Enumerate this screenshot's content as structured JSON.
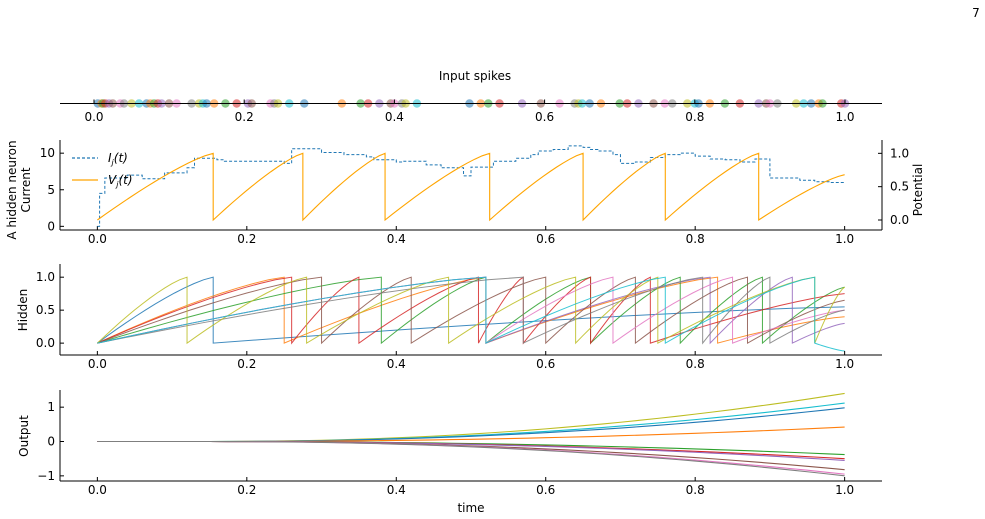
{
  "page_number": "7",
  "colors": {
    "current": "#1f77b4",
    "potential": "#ffa500",
    "axis": "#000000",
    "palette": [
      "#1f77b4",
      "#ff7f0e",
      "#2ca02c",
      "#d62728",
      "#9467bd",
      "#8c564b",
      "#e377c2",
      "#7f7f7f",
      "#bcbd22",
      "#17becf"
    ]
  },
  "chart_data": [
    {
      "type": "scatter",
      "title": "Input spikes",
      "xlim": [
        0.0,
        1.0
      ],
      "xticks": [
        "0.0",
        "0.2",
        "0.4",
        "0.6",
        "0.8",
        "1.0"
      ],
      "spike_times": [
        0.005,
        0.01,
        0.012,
        0.015,
        0.02,
        0.025,
        0.035,
        0.04,
        0.05,
        0.06,
        0.07,
        0.075,
        0.08,
        0.085,
        0.09,
        0.1,
        0.11,
        0.13,
        0.14,
        0.145,
        0.15,
        0.16,
        0.175,
        0.19,
        0.205,
        0.21,
        0.235,
        0.24,
        0.245,
        0.26,
        0.28,
        0.33,
        0.355,
        0.365,
        0.38,
        0.395,
        0.4,
        0.41,
        0.415,
        0.43,
        0.5,
        0.515,
        0.525,
        0.54,
        0.57,
        0.595,
        0.62,
        0.64,
        0.645,
        0.65,
        0.66,
        0.675,
        0.7,
        0.71,
        0.725,
        0.745,
        0.76,
        0.77,
        0.79,
        0.8,
        0.805,
        0.82,
        0.84,
        0.86,
        0.885,
        0.895,
        0.9,
        0.91,
        0.935,
        0.945,
        0.955,
        0.965,
        0.97,
        0.995,
        1.0
      ]
    },
    {
      "type": "line",
      "ylabel": "A hidden neuron",
      "ylabel_left": "Current",
      "ylabel_right": "Potential",
      "xlim": [
        -0.05,
        1.05
      ],
      "ylim_left": [
        -0.5,
        11.8
      ],
      "ylim_right": [
        -0.15,
        1.2
      ],
      "xticks": [
        "0.0",
        "0.2",
        "0.4",
        "0.6",
        "0.8",
        "1.0"
      ],
      "yticks_left": [
        "0",
        "5",
        "10"
      ],
      "yticks_right": [
        "0.0",
        "0.5",
        "1.0"
      ],
      "legend": {
        "placement": "top-left",
        "current_label": "I_j(t)",
        "potential_label": "V_j(t)"
      },
      "current": {
        "x": [
          0.0,
          0.003,
          0.01,
          0.04,
          0.06,
          0.09,
          0.12,
          0.13,
          0.16,
          0.17,
          0.25,
          0.26,
          0.3,
          0.33,
          0.36,
          0.37,
          0.4,
          0.41,
          0.44,
          0.46,
          0.49,
          0.5,
          0.53,
          0.56,
          0.58,
          0.59,
          0.61,
          0.63,
          0.65,
          0.66,
          0.67,
          0.69,
          0.7,
          0.72,
          0.74,
          0.76,
          0.78,
          0.8,
          0.82,
          0.84,
          0.86,
          0.88,
          0.9,
          0.94,
          0.96,
          0.98,
          1.0
        ],
        "y": [
          0,
          4.5,
          6.6,
          7.0,
          6.5,
          7.3,
          8.0,
          9.3,
          9.1,
          8.9,
          8.6,
          10.6,
          10.1,
          9.8,
          9.5,
          9.1,
          8.8,
          8.9,
          8.4,
          8.0,
          6.9,
          8.1,
          8.9,
          9.3,
          9.8,
          10.3,
          10.5,
          11.0,
          10.8,
          10.5,
          10.3,
          9.8,
          8.6,
          8.8,
          9.4,
          9.8,
          10.0,
          9.6,
          9.2,
          9.1,
          8.8,
          9.2,
          6.6,
          6.3,
          6.1,
          6.0,
          6.0
        ]
      },
      "potential": {
        "reset_times": [
          0.155,
          0.275,
          0.385,
          0.525,
          0.65,
          0.76,
          0.885
        ],
        "x": [
          0.0,
          0.155,
          0.155,
          0.275,
          0.275,
          0.385,
          0.385,
          0.525,
          0.525,
          0.65,
          0.65,
          0.76,
          0.76,
          0.885,
          0.885,
          1.0
        ],
        "y": [
          0.0,
          1.0,
          0.0,
          1.0,
          0.0,
          1.0,
          0.0,
          1.0,
          0.0,
          1.0,
          0.0,
          1.0,
          0.0,
          1.0,
          0.0,
          0.68
        ]
      }
    },
    {
      "type": "line",
      "ylabel": "Hidden",
      "xlim": [
        -0.05,
        1.05
      ],
      "ylim": [
        -0.18,
        1.2
      ],
      "xticks": [
        "0.0",
        "0.2",
        "0.4",
        "0.6",
        "0.8",
        "1.0"
      ],
      "yticks": [
        "0.0",
        "0.5",
        "1.0"
      ],
      "series": [
        {
          "reset_times": [
            0.155
          ],
          "end_value": 0.55,
          "rate": 0.7
        },
        {
          "reset_times": [
            0.25,
            0.52,
            0.83
          ],
          "end_value": 0.4,
          "rate": 0.35
        },
        {
          "reset_times": [
            0.38,
            0.52,
            0.66,
            0.78,
            0.89
          ],
          "end_value": 0.85,
          "rate": 0.6
        },
        {
          "reset_times": [
            0.26,
            0.35,
            0.51,
            0.57,
            0.66,
            0.74
          ],
          "end_value": 0.75,
          "rate": 0.45
        },
        {
          "reset_times": [
            0.52,
            0.82,
            0.93
          ],
          "end_value": 0.3,
          "rate": 0.3
        },
        {
          "reset_times": [
            0.3,
            0.42,
            0.6,
            0.72,
            0.87
          ],
          "end_value": 0.65,
          "rate": 0.4
        },
        {
          "reset_times": [
            0.52,
            0.69,
            0.85
          ],
          "end_value": 0.5,
          "rate": 0.35
        },
        {
          "reset_times": [
            0.57,
            0.81,
            0.9
          ],
          "end_value": 0.5,
          "rate": 0.25
        },
        {
          "reset_times": [
            0.12,
            0.28,
            0.47,
            0.64,
            0.75,
            0.96
          ],
          "end_value": 0.85,
          "rate": 0.55
        },
        {
          "reset_times": [
            0.52,
            0.76,
            0.96
          ],
          "end_value": -0.12,
          "rate": 0.2
        }
      ]
    },
    {
      "type": "line",
      "ylabel": "Output",
      "xlabel": "time",
      "xlim": [
        -0.05,
        1.05
      ],
      "ylim": [
        -1.15,
        1.5
      ],
      "xticks": [
        "0.0",
        "0.2",
        "0.4",
        "0.6",
        "0.8",
        "1.0"
      ],
      "yticks": [
        "−1",
        "0",
        "1"
      ],
      "series": [
        {
          "end_value": 1.4
        },
        {
          "end_value": 1.12
        },
        {
          "end_value": 0.98
        },
        {
          "end_value": 0.42
        },
        {
          "end_value": -0.38
        },
        {
          "end_value": -0.5
        },
        {
          "end_value": -0.55
        },
        {
          "end_value": -0.82
        },
        {
          "end_value": -0.95
        },
        {
          "end_value": -1.0
        }
      ]
    }
  ]
}
